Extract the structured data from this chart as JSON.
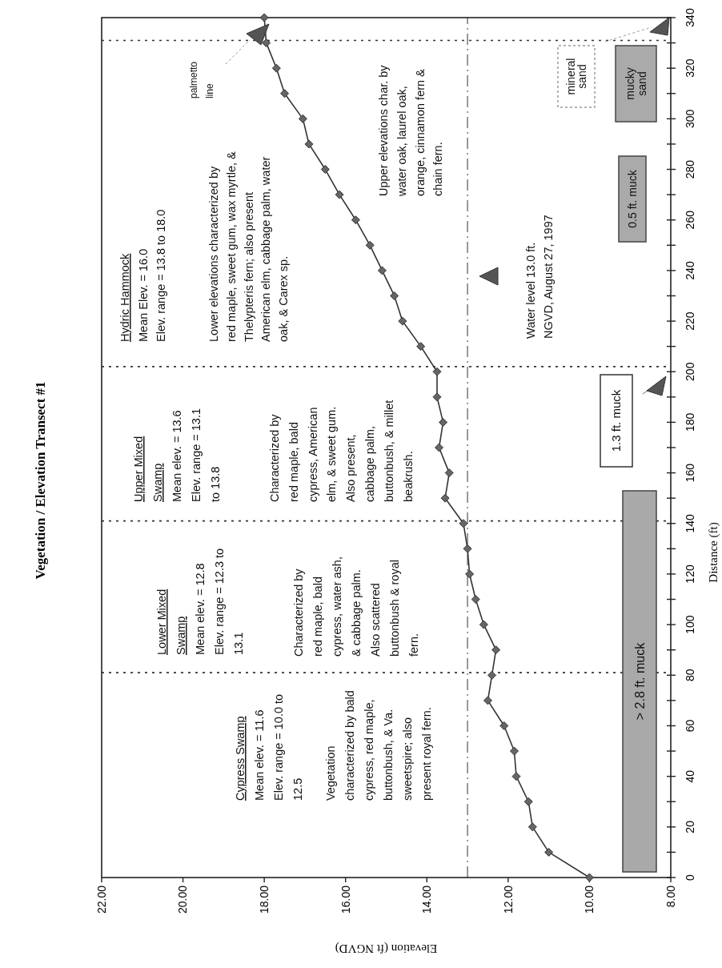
{
  "chart_data": {
    "type": "line",
    "title": "Vegetation / Elevation Transect #1",
    "xlabel": "Elevation (ft NGVD)",
    "ylabel": "Distance (ft)",
    "x": [
      10.0,
      11.0,
      11.4,
      11.5,
      11.8,
      11.85,
      12.1,
      12.5,
      12.4,
      12.3,
      12.6,
      12.8,
      12.95,
      13.0,
      13.1,
      13.55,
      13.45,
      13.7,
      13.6,
      13.75,
      13.75,
      14.15,
      14.6,
      14.8,
      15.1,
      15.4,
      15.75,
      16.15,
      16.5,
      16.9,
      17.05,
      17.5,
      17.7,
      17.95,
      18.0
    ],
    "series": [
      {
        "color": "#333333",
        "values": [
          0,
          10,
          20,
          30,
          40,
          50,
          60,
          70,
          80,
          90,
          100,
          110,
          120,
          130,
          140,
          150,
          160,
          170,
          180,
          190,
          200,
          210,
          220,
          230,
          240,
          250,
          260,
          270,
          280,
          290,
          300,
          310,
          320,
          330,
          340
        ]
      }
    ],
    "xlim": [
      22,
      8
    ],
    "ylim": [
      0,
      340
    ],
    "xticks": [
      {
        "value": 22,
        "label": "22.00"
      },
      {
        "value": 20,
        "label": "20.00"
      },
      {
        "value": 18,
        "label": "18.00"
      },
      {
        "value": 16,
        "label": "16.00"
      },
      {
        "value": 14,
        "label": "14.00"
      },
      {
        "value": 12,
        "label": "12.00"
      },
      {
        "value": 10,
        "label": "10.00"
      },
      {
        "value": 8,
        "label": "8.00"
      }
    ],
    "yticks": [
      0,
      {
        "value": 10,
        "label": null
      },
      20,
      {
        "value": 30,
        "label": null
      },
      40,
      {
        "value": 50,
        "label": null
      },
      60,
      {
        "value": 70,
        "label": null
      },
      80,
      {
        "value": 90,
        "label": null
      },
      100,
      {
        "value": 110,
        "label": null
      },
      120,
      {
        "value": 130,
        "label": null
      },
      140,
      {
        "value": 150,
        "label": null
      },
      160,
      {
        "value": 170,
        "label": null
      },
      180,
      {
        "value": 190,
        "label": null
      },
      200,
      {
        "value": 210,
        "label": null
      },
      220,
      {
        "value": 230,
        "label": null
      },
      240,
      {
        "value": 250,
        "label": null
      },
      260,
      {
        "value": 270,
        "label": null
      },
      280,
      {
        "value": 290,
        "label": null
      },
      300,
      {
        "value": 310,
        "label": null
      },
      320,
      {
        "value": 330,
        "label": null
      },
      340
    ],
    "marker": "diamond",
    "line_style": "solid",
    "ref_lines": [
      {
        "axis": "x",
        "value": 13,
        "color": "#555555",
        "line_style": "dashed"
      },
      {
        "axis": "y",
        "value": 81,
        "color": "#333333",
        "line_style": "dotted"
      },
      {
        "axis": "y",
        "value": 141,
        "color": "#333333",
        "line_style": "dotted"
      },
      {
        "axis": "y",
        "value": 202,
        "color": "#333333",
        "line_style": "dotted"
      },
      {
        "axis": "y",
        "value": 331,
        "color": "#333333",
        "line_style": "dotted"
      }
    ],
    "annotations": [
      "Cypress Swamp\nMean elev. = 11.6\nElev. range = 10.0 to\n12.5",
      "Vegetation\ncharacterized by bald\ncypress, red maple,\nbuttonbush, & Va.\nsweetspire; also\npresent royal fern.",
      "Lower Mixed\nSwamp\nMean elev. = 12.8\nElev. range = 12.3 to\n13.1",
      "Characterized by\nred maple, bald\ncypress, water ash,\n& cabbage palm.\nAlso scattered\nbuttonbush & royal\nfern.",
      "Upper Mixed\nSwamp\nMean elev. = 13.6\nElev. range = 13.1\nto 13.8",
      "Characterized by\nred maple, bald\ncypress, American\nelm, & sweet gum.\nAlso present,\ncabbage palm,\nbuttonbush, & millet\nbeakrush.",
      "Hydric Hammock\nMean Elev. = 16.0\nElev. range = 13.8 to 18.0",
      "Lower elevations characterized by\nred maple, sweet gum, wax myrtle, &\nThelypteris fern; also present\nAmerican elm, cabbage palm, water\noak, & Carex sp.",
      "palmetto\nline",
      "Upper elevations char. by\nwater oak, laurel oak,\norange, cinnamon fern &\nchain fern.",
      "Water level 13.0 ft.\nNGVD, August 27, 1997",
      "> 2.8 ft. muck",
      "1.3 ft. muck",
      "0.5 ft. muck",
      "mineral\nsand",
      "mucky\nsand"
    ]
  }
}
